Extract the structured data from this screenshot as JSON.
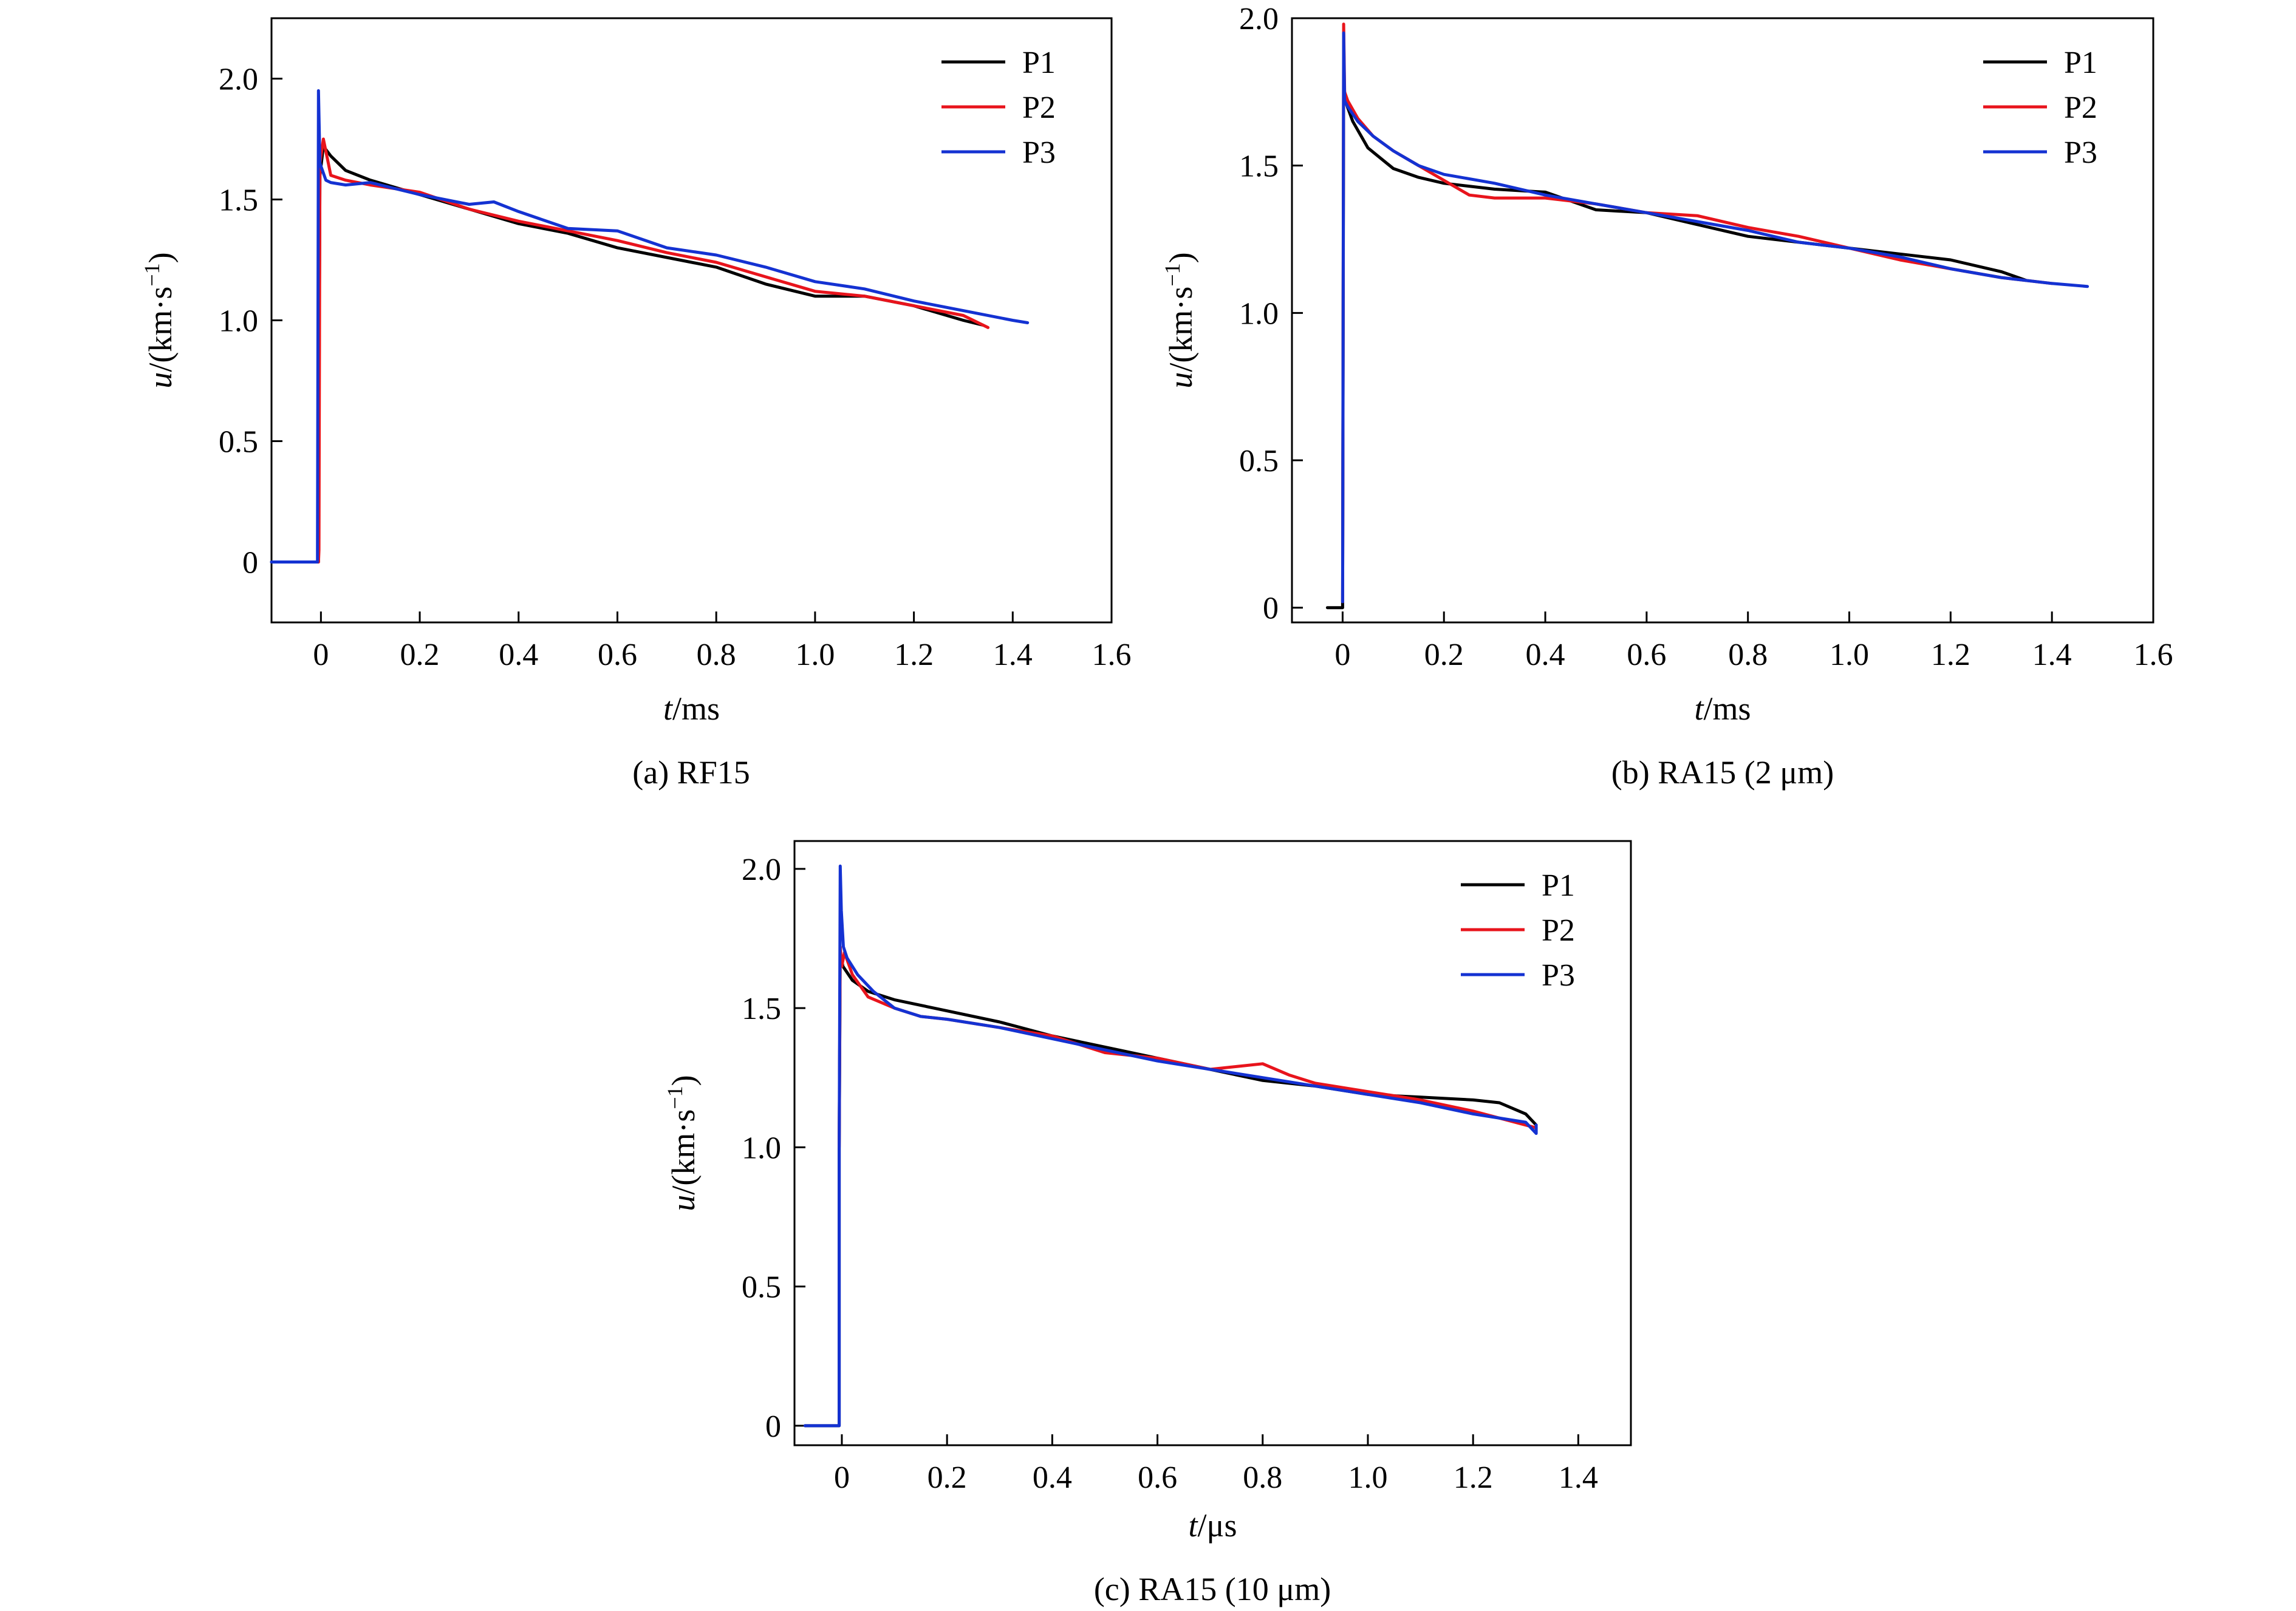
{
  "figure": {
    "background": "#ffffff",
    "series_colors": {
      "P1": "#000000",
      "P2": "#e8141c",
      "P3": "#1432d2"
    }
  },
  "chart_data": [
    {
      "id": "a",
      "type": "line",
      "caption": "(a) RF15",
      "xlabel": {
        "italic": "t",
        "rest": "/ms"
      },
      "ylabel": {
        "italic": "u",
        "rest": "/(km·s",
        "sup": "−1",
        "close": ")"
      },
      "xlim": [
        -0.1,
        1.6
      ],
      "ylim": [
        -0.25,
        2.25
      ],
      "xticks": [
        0,
        0.2,
        0.4,
        0.6,
        0.8,
        1.0,
        1.2,
        1.4,
        1.6
      ],
      "xtick_labels": [
        "0",
        "0.2",
        "0.4",
        "0.6",
        "0.8",
        "1.0",
        "1.2",
        "1.4",
        "1.6"
      ],
      "yticks": [
        0,
        0.5,
        1.0,
        1.5,
        2.0
      ],
      "ytick_labels": [
        "0",
        "0.5",
        "1.0",
        "1.5",
        "2.0"
      ],
      "legend_position": "top-right",
      "grid": false,
      "series": [
        {
          "name": "P1",
          "color": "#000000",
          "x": [
            -0.1,
            -0.005,
            -0.005,
            -0.002,
            0.005,
            0.02,
            0.05,
            0.1,
            0.2,
            0.3,
            0.4,
            0.5,
            0.6,
            0.7,
            0.8,
            0.9,
            1.0,
            1.1,
            1.2,
            1.3,
            1.34
          ],
          "y": [
            0,
            0,
            0.05,
            1.6,
            1.72,
            1.68,
            1.62,
            1.58,
            1.52,
            1.46,
            1.4,
            1.36,
            1.3,
            1.26,
            1.22,
            1.15,
            1.1,
            1.1,
            1.06,
            1.0,
            0.98
          ]
        },
        {
          "name": "P2",
          "color": "#e8141c",
          "x": [
            -0.005,
            -0.004,
            -0.002,
            0.005,
            0.02,
            0.05,
            0.1,
            0.2,
            0.3,
            0.4,
            0.5,
            0.6,
            0.7,
            0.8,
            0.9,
            1.0,
            1.1,
            1.2,
            1.3,
            1.35
          ],
          "y": [
            0,
            0.05,
            1.65,
            1.75,
            1.6,
            1.58,
            1.56,
            1.53,
            1.46,
            1.41,
            1.37,
            1.33,
            1.28,
            1.24,
            1.18,
            1.12,
            1.1,
            1.06,
            1.02,
            0.97
          ]
        },
        {
          "name": "P3",
          "color": "#1432d2",
          "x": [
            -0.1,
            -0.007,
            -0.007,
            -0.005,
            -0.002,
            0.01,
            0.02,
            0.05,
            0.1,
            0.2,
            0.3,
            0.35,
            0.4,
            0.5,
            0.6,
            0.7,
            0.8,
            0.9,
            1.0,
            1.1,
            1.2,
            1.3,
            1.4,
            1.43
          ],
          "y": [
            0,
            0,
            0.05,
            1.95,
            1.65,
            1.58,
            1.57,
            1.56,
            1.57,
            1.52,
            1.48,
            1.49,
            1.45,
            1.38,
            1.37,
            1.3,
            1.27,
            1.22,
            1.16,
            1.13,
            1.08,
            1.04,
            1.0,
            0.99
          ]
        }
      ]
    },
    {
      "id": "b",
      "type": "line",
      "caption": "(b) RA15 (2 μm)",
      "xlabel": {
        "italic": "t",
        "rest": "/ms"
      },
      "ylabel": {
        "italic": "u",
        "rest": "/(km·s",
        "sup": "−1",
        "close": ")"
      },
      "xlim": [
        -0.1,
        1.6
      ],
      "ylim": [
        -0.05,
        2.0
      ],
      "xticks": [
        0,
        0.2,
        0.4,
        0.6,
        0.8,
        1.0,
        1.2,
        1.4,
        1.6
      ],
      "xtick_labels": [
        "0",
        "0.2",
        "0.4",
        "0.6",
        "0.8",
        "1.0",
        "1.2",
        "1.4",
        "1.6"
      ],
      "yticks": [
        0,
        0.5,
        1.0,
        1.5,
        2.0
      ],
      "ytick_labels": [
        "0",
        "0.5",
        "1.0",
        "1.5",
        "2.0"
      ],
      "legend_position": "top-right",
      "grid": false,
      "series": [
        {
          "name": "P1",
          "color": "#000000",
          "x": [
            -0.03,
            0.0,
            0.0,
            0.002,
            0.005,
            0.02,
            0.05,
            0.1,
            0.15,
            0.2,
            0.3,
            0.4,
            0.5,
            0.6,
            0.7,
            0.8,
            0.9,
            1.0,
            1.1,
            1.2,
            1.3,
            1.35
          ],
          "y": [
            0,
            0,
            0.02,
            1.8,
            1.72,
            1.65,
            1.56,
            1.49,
            1.46,
            1.44,
            1.42,
            1.41,
            1.35,
            1.34,
            1.3,
            1.26,
            1.24,
            1.22,
            1.2,
            1.18,
            1.14,
            1.11
          ]
        },
        {
          "name": "P2",
          "color": "#e8141c",
          "x": [
            0.0,
            0.002,
            0.004,
            0.01,
            0.03,
            0.06,
            0.1,
            0.15,
            0.2,
            0.25,
            0.3,
            0.4,
            0.5,
            0.6,
            0.7,
            0.8,
            0.9,
            1.0,
            1.1,
            1.2,
            1.3,
            1.4
          ],
          "y": [
            0.02,
            1.98,
            1.75,
            1.72,
            1.66,
            1.6,
            1.55,
            1.5,
            1.45,
            1.4,
            1.39,
            1.39,
            1.37,
            1.34,
            1.33,
            1.29,
            1.26,
            1.22,
            1.18,
            1.15,
            1.12,
            1.1
          ]
        },
        {
          "name": "P3",
          "color": "#1432d2",
          "x": [
            0.0,
            0.002,
            0.004,
            0.01,
            0.03,
            0.06,
            0.1,
            0.15,
            0.2,
            0.3,
            0.4,
            0.5,
            0.6,
            0.7,
            0.8,
            0.9,
            1.0,
            1.1,
            1.2,
            1.3,
            1.4,
            1.47
          ],
          "y": [
            0.02,
            1.95,
            1.72,
            1.7,
            1.65,
            1.6,
            1.55,
            1.5,
            1.47,
            1.44,
            1.4,
            1.37,
            1.34,
            1.31,
            1.28,
            1.24,
            1.22,
            1.19,
            1.15,
            1.12,
            1.1,
            1.09
          ]
        }
      ]
    },
    {
      "id": "c",
      "type": "line",
      "caption": "(c) RA15 (10 μm)",
      "xlabel": {
        "italic": "t",
        "rest": "/μs"
      },
      "ylabel": {
        "italic": "u",
        "rest": "/(km·s",
        "sup": "−1",
        "close": ")"
      },
      "xlim": [
        -0.09,
        1.5
      ],
      "ylim": [
        -0.07,
        2.1
      ],
      "xticks": [
        0,
        0.2,
        0.4,
        0.6,
        0.8,
        1.0,
        1.2,
        1.4
      ],
      "xtick_labels": [
        "0",
        "0.2",
        "0.4",
        "0.6",
        "0.8",
        "1.0",
        "1.2",
        "1.4"
      ],
      "yticks": [
        0,
        0.5,
        1.0,
        1.5,
        2.0
      ],
      "ytick_labels": [
        "0",
        "0.5",
        "1.0",
        "1.5",
        "2.0"
      ],
      "legend_position": "top-right",
      "grid": false,
      "series": [
        {
          "name": "P1",
          "color": "#000000",
          "x": [
            -0.07,
            -0.005,
            -0.005,
            -0.003,
            0.002,
            0.02,
            0.05,
            0.1,
            0.2,
            0.3,
            0.4,
            0.5,
            0.6,
            0.7,
            0.8,
            0.9,
            1.0,
            1.1,
            1.2,
            1.25,
            1.3,
            1.32
          ],
          "y": [
            0,
            0,
            1.0,
            1.7,
            1.65,
            1.6,
            1.56,
            1.53,
            1.49,
            1.45,
            1.4,
            1.36,
            1.32,
            1.28,
            1.24,
            1.22,
            1.19,
            1.18,
            1.17,
            1.16,
            1.12,
            1.08
          ]
        },
        {
          "name": "P2",
          "color": "#e8141c",
          "x": [
            -0.005,
            -0.003,
            0.0,
            0.005,
            0.02,
            0.05,
            0.1,
            0.15,
            0.2,
            0.3,
            0.4,
            0.5,
            0.6,
            0.7,
            0.75,
            0.8,
            0.85,
            0.9,
            1.0,
            1.1,
            1.2,
            1.32
          ],
          "y": [
            1.0,
            1.72,
            1.65,
            1.7,
            1.62,
            1.54,
            1.5,
            1.47,
            1.46,
            1.43,
            1.4,
            1.34,
            1.32,
            1.28,
            1.29,
            1.3,
            1.26,
            1.23,
            1.2,
            1.17,
            1.13,
            1.07
          ]
        },
        {
          "name": "P3",
          "color": "#1432d2",
          "x": [
            -0.07,
            -0.005,
            -0.005,
            -0.003,
            -0.001,
            0.003,
            0.01,
            0.03,
            0.06,
            0.1,
            0.15,
            0.2,
            0.3,
            0.4,
            0.5,
            0.6,
            0.7,
            0.8,
            0.9,
            1.0,
            1.1,
            1.2,
            1.3,
            1.32,
            1.32
          ],
          "y": [
            0,
            0,
            1.0,
            2.01,
            1.85,
            1.72,
            1.68,
            1.62,
            1.56,
            1.5,
            1.47,
            1.46,
            1.43,
            1.39,
            1.35,
            1.31,
            1.28,
            1.25,
            1.22,
            1.19,
            1.16,
            1.12,
            1.09,
            1.05,
            1.08
          ]
        }
      ]
    }
  ]
}
